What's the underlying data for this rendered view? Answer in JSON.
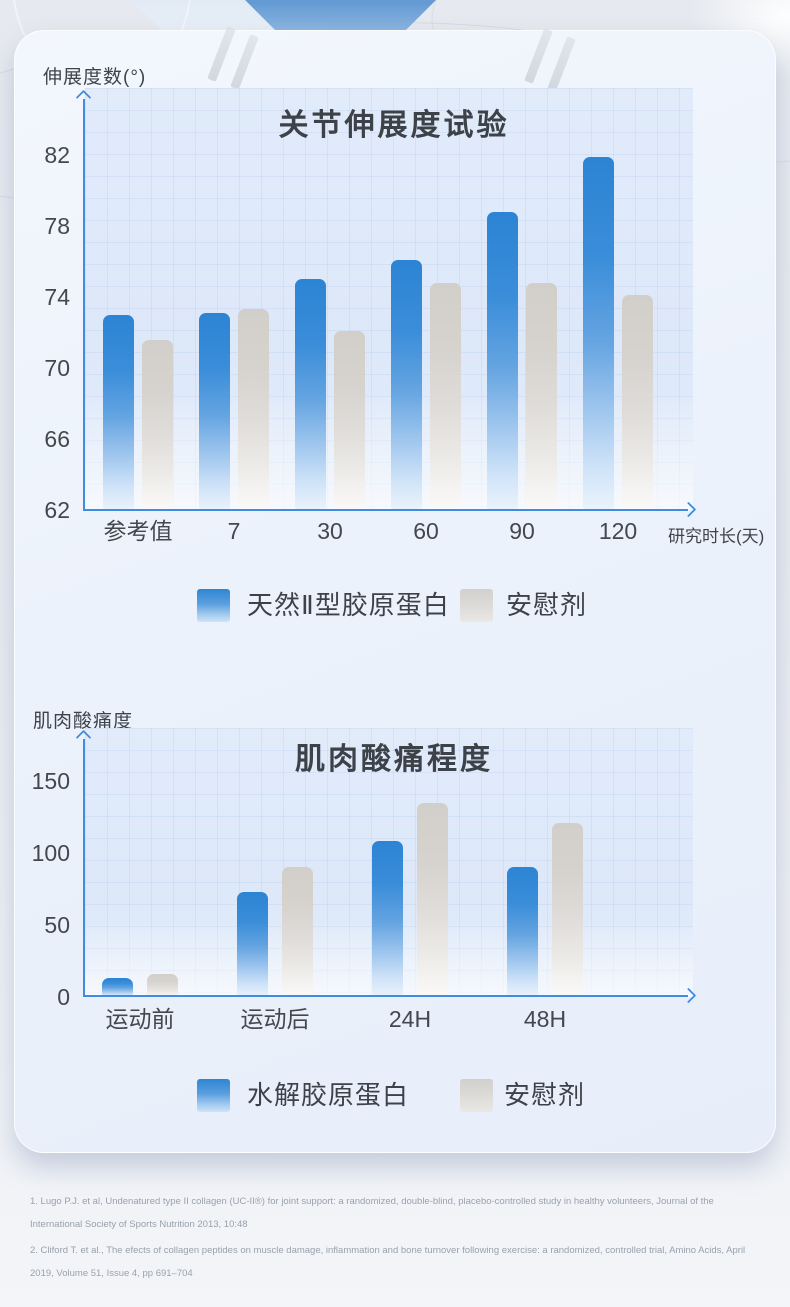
{
  "colors": {
    "accent_blue": "#2e86d3",
    "placebo_gray": "#d2cfca",
    "axis_blue": "#3f8ce2",
    "title_text": "#3d4249",
    "footnote_text": "#9aa1ad"
  },
  "chart_data": [
    {
      "type": "bar",
      "title": "关节伸展度试验",
      "ylabel": "伸展度数(°)",
      "xlabel": "研究时长(天)",
      "categories": [
        "参考值",
        "7",
        "30",
        "60",
        "90",
        "120"
      ],
      "series": [
        {
          "name": "天然Ⅱ型胶原蛋白",
          "color": "#2e86d3",
          "values": [
            73,
            73.1,
            75,
            76.1,
            78.8,
            81.9
          ]
        },
        {
          "name": "安慰剂",
          "color": "#d2cfca",
          "values": [
            71.6,
            73.3,
            72.1,
            74.8,
            74.8,
            74.1
          ]
        }
      ],
      "ylim": [
        62,
        83.5
      ],
      "yticks": [
        62,
        66,
        70,
        74,
        78,
        82
      ],
      "grid": true,
      "legend_position": "bottom"
    },
    {
      "type": "bar",
      "title": "肌肉酸痛程度",
      "ylabel": "肌肉酸痛度",
      "xlabel": "",
      "categories": [
        "运动前",
        "运动后",
        "24H",
        "48H"
      ],
      "series": [
        {
          "name": "水解胶原蛋白",
          "color": "#2e86d3",
          "values": [
            13,
            73,
            108,
            90
          ]
        },
        {
          "name": "安慰剂",
          "color": "#d2cfca",
          "values": [
            16,
            90,
            135,
            121
          ]
        }
      ],
      "ylim": [
        0,
        168
      ],
      "yticks": [
        0,
        50,
        100,
        150
      ],
      "grid": true,
      "legend_position": "bottom"
    }
  ],
  "footnotes": [
    "1.  Lugo P.J. et al,  Undenatured type II collagen (UC-II®) for joint support: a randomized, double-blind, placebo-controlled study in healthy volunteers, Journal of the International Society of Sports Nutrition 2013, 10:48",
    "2.  Cliford T. et al., The efects of collagen peptides on muscle damage, inflammation and bone turnover following exercise: a randomized, controlled trial, Amino Acids, April 2019, Volume 51, Issue 4, pp 691–704"
  ]
}
